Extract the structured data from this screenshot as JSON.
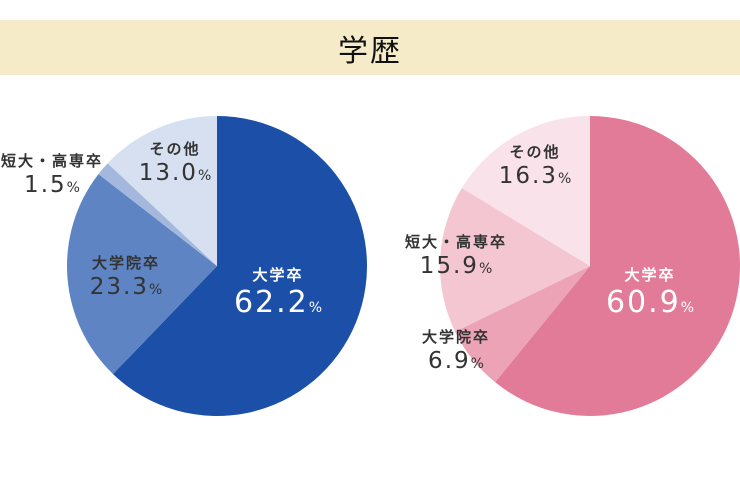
{
  "title": "学歴",
  "chart_data": [
    {
      "type": "pie",
      "title": "",
      "start": "top",
      "direction": "clockwise",
      "slices": [
        {
          "label": "大学卒",
          "value": 62.2,
          "color": "#1b4fa8"
        },
        {
          "label": "大学院卒",
          "value": 23.3,
          "color": "#5e84c4"
        },
        {
          "label": "短大・高専卒",
          "value": 1.5,
          "color": "#a4b8dd"
        },
        {
          "label": "その他",
          "value": 13.0,
          "color": "#d6e0f0"
        }
      ]
    },
    {
      "type": "pie",
      "title": "",
      "start": "top",
      "direction": "clockwise",
      "slices": [
        {
          "label": "大学卒",
          "value": 60.9,
          "color": "#e27b98"
        },
        {
          "label": "大学院卒",
          "value": 6.9,
          "color": "#eca3b6"
        },
        {
          "label": "短大・高専卒",
          "value": 15.9,
          "color": "#f4c6d2"
        },
        {
          "label": "その他",
          "value": 16.3,
          "color": "#f9e2e9"
        }
      ]
    }
  ]
}
